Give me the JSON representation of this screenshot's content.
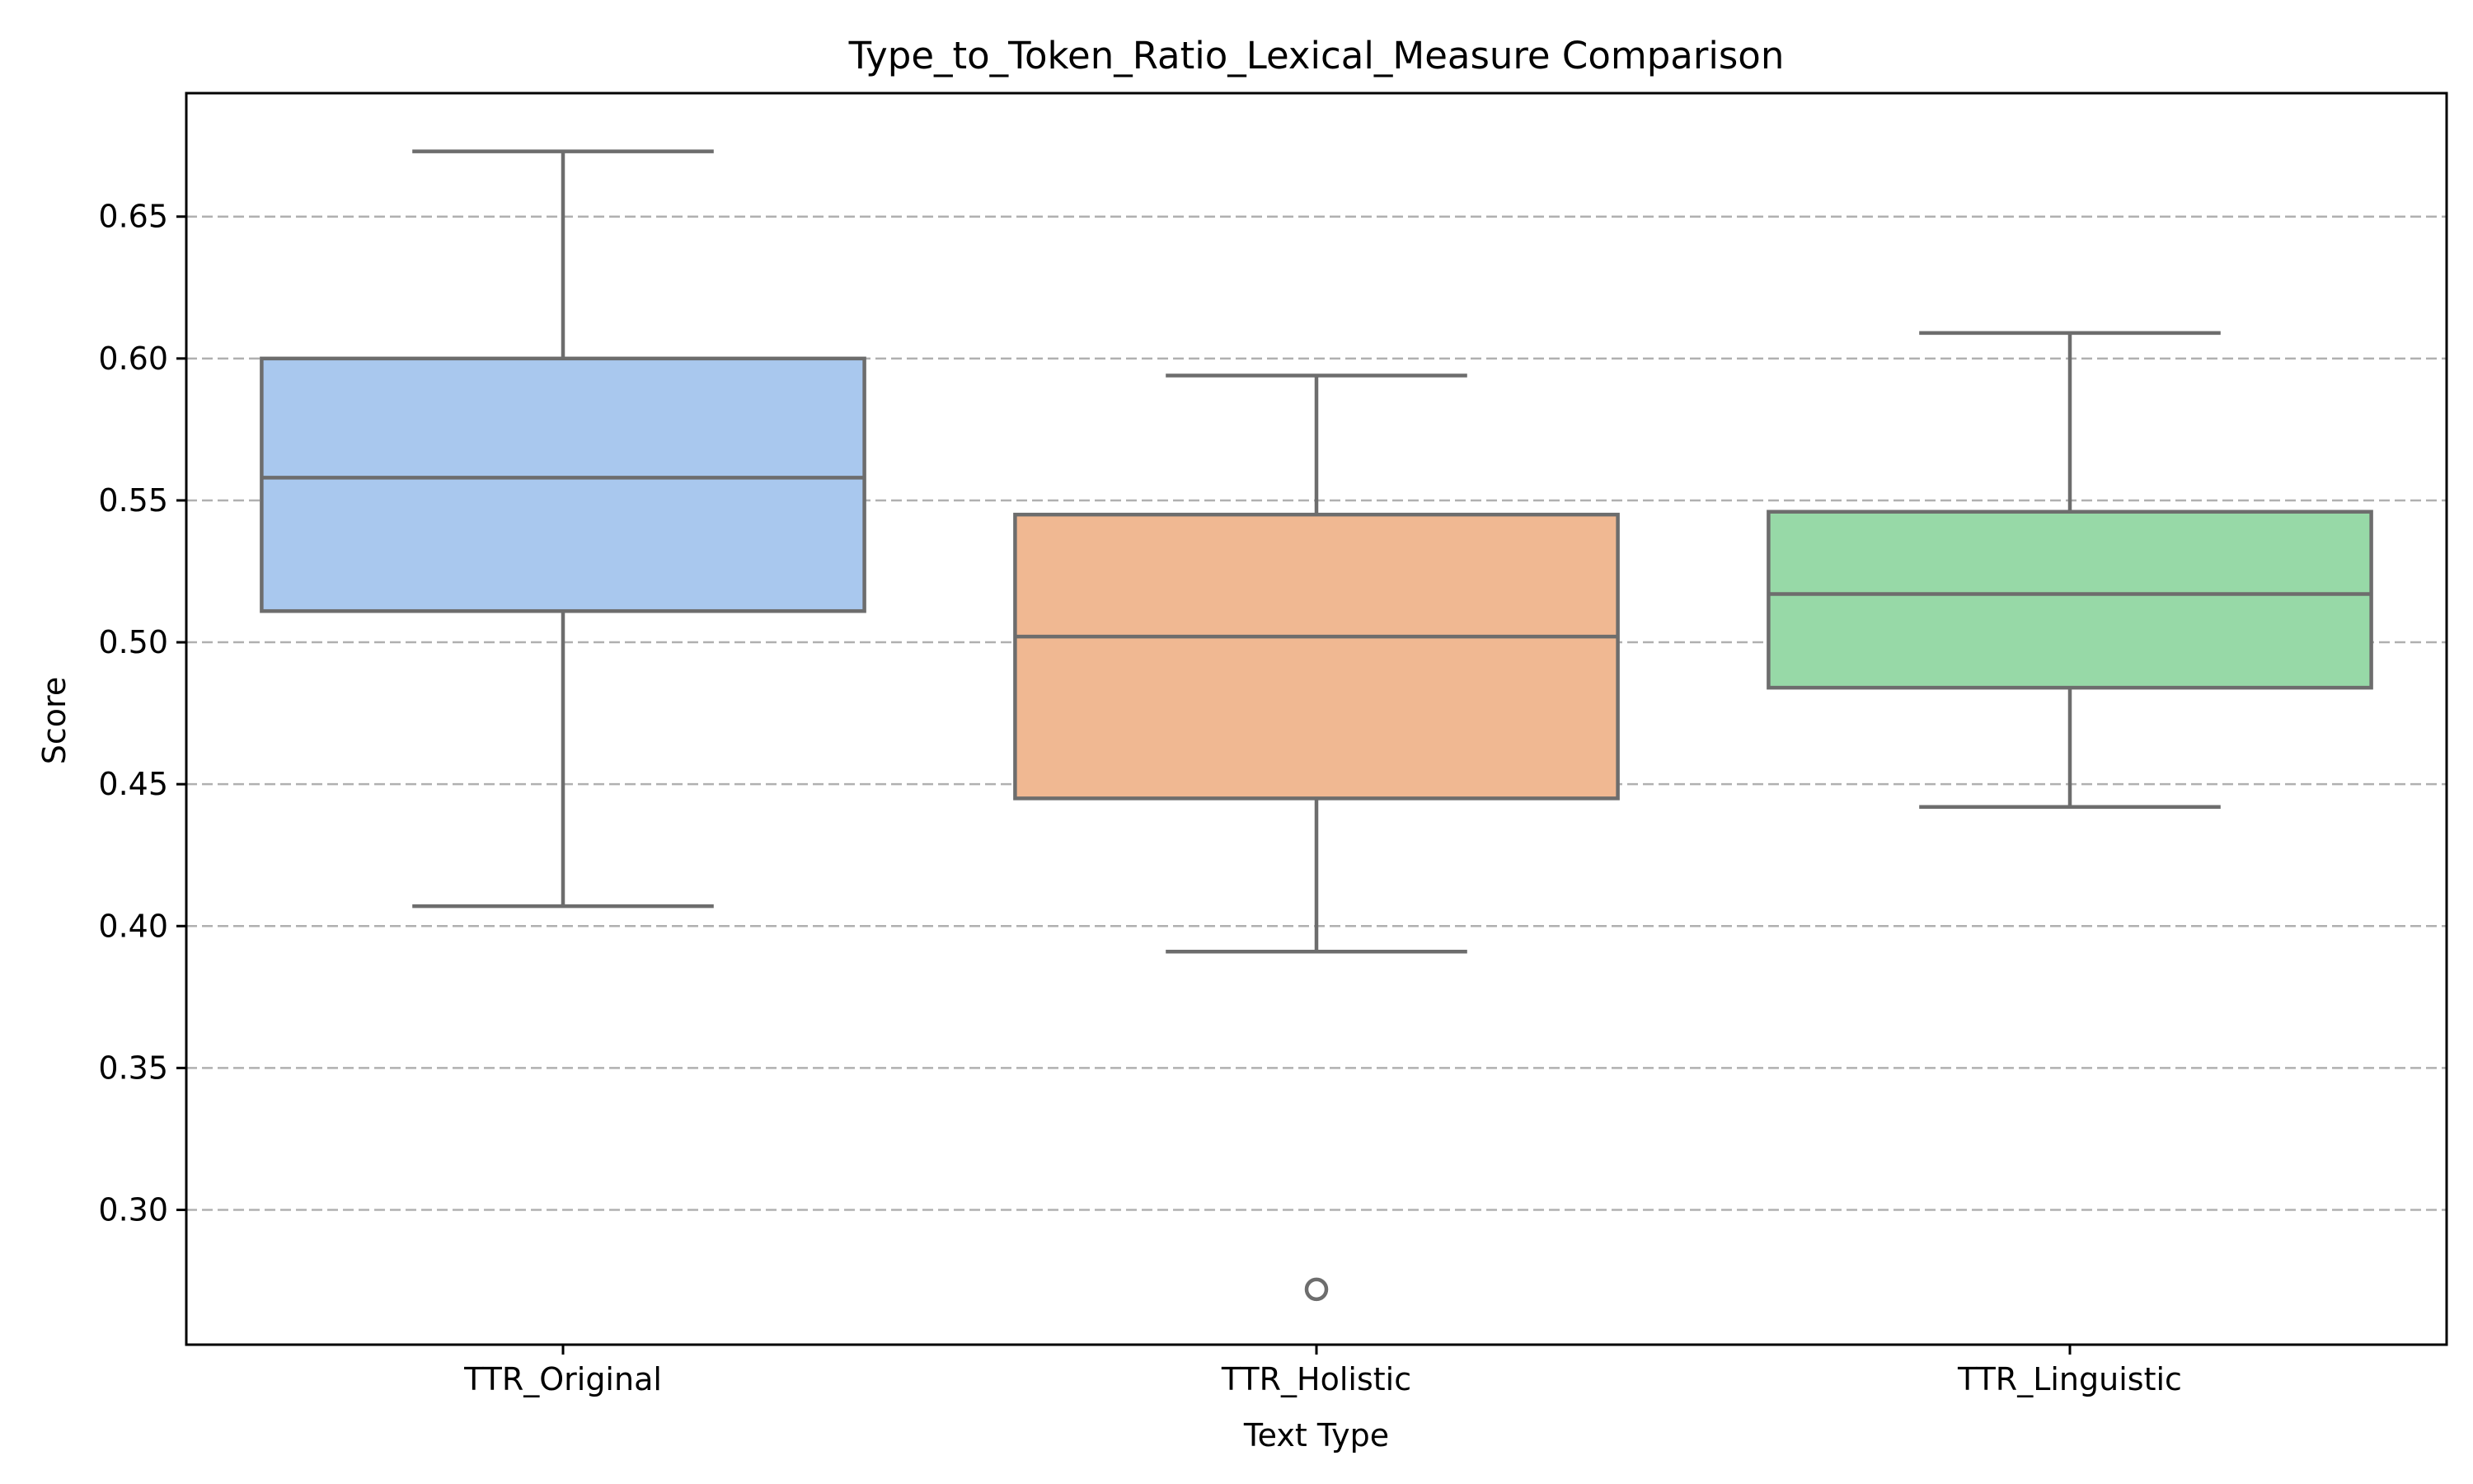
{
  "chart_data": {
    "type": "box",
    "title": "Type_to_Token_Ratio_Lexical_Measure Comparison",
    "xlabel": "Text Type",
    "ylabel": "Score",
    "categories": [
      "TTR_Original",
      "TTR_Holistic",
      "TTR_Linguistic"
    ],
    "colors": [
      "#a9c8ee",
      "#f0b892",
      "#97d9a7"
    ],
    "line_color": "#6d6d6d",
    "ylim": [
      0.2525,
      0.6935
    ],
    "yticks": [
      0.3,
      0.35,
      0.4,
      0.45,
      0.5,
      0.55,
      0.6,
      0.65
    ],
    "ytick_labels": [
      "0.30",
      "0.35",
      "0.40",
      "0.45",
      "0.50",
      "0.55",
      "0.60",
      "0.65"
    ],
    "grid": "y-dashed",
    "boxes": [
      {
        "name": "TTR_Original",
        "whisker_low": 0.407,
        "q1": 0.511,
        "median": 0.558,
        "q3": 0.6,
        "whisker_high": 0.673,
        "outliers": []
      },
      {
        "name": "TTR_Holistic",
        "whisker_low": 0.391,
        "q1": 0.445,
        "median": 0.502,
        "q3": 0.545,
        "whisker_high": 0.594,
        "outliers": [
          0.272
        ]
      },
      {
        "name": "TTR_Linguistic",
        "whisker_low": 0.442,
        "q1": 0.484,
        "median": 0.517,
        "q3": 0.546,
        "whisker_high": 0.609,
        "outliers": []
      }
    ]
  }
}
